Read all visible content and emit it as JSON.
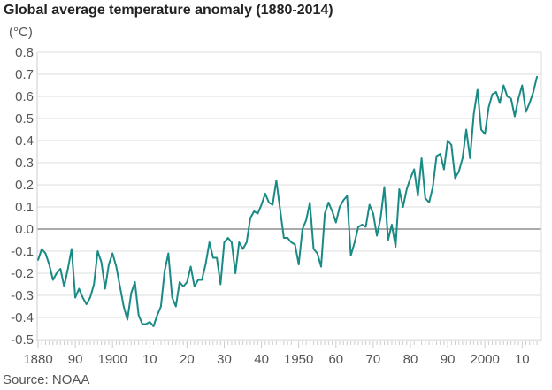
{
  "chart_data": {
    "type": "line",
    "title": "Global average temperature anomaly (1880-2014)",
    "ylabel": "(°C)",
    "xlabel": "",
    "source": "Source: NOAA",
    "ylim": [
      -0.5,
      0.8
    ],
    "xlim": [
      1880,
      2014
    ],
    "grid": true,
    "line_color": "#1a8a85",
    "y_ticks": [
      0.8,
      0.7,
      0.6,
      0.5,
      0.4,
      0.3,
      0.2,
      0.1,
      0.0,
      -0.1,
      -0.2,
      -0.3,
      -0.4,
      -0.5
    ],
    "y_tick_labels": [
      "0.8",
      "0.7",
      "0.6",
      "0.5",
      "0.4",
      "0.3",
      "0.2",
      "0.1",
      "0.0",
      "-0.1",
      "-0.2",
      "-0.3",
      "-0.4",
      "-0.5"
    ],
    "x_ticks": [
      1880,
      1890,
      1900,
      1910,
      1920,
      1930,
      1940,
      1950,
      1960,
      1970,
      1980,
      1990,
      2000,
      2010
    ],
    "x_tick_labels": [
      "1880",
      "90",
      "1900",
      "10",
      "20",
      "30",
      "40",
      "1950",
      "60",
      "70",
      "80",
      "90",
      "2000",
      "10"
    ],
    "x_start": 1880,
    "values": [
      -0.14,
      -0.09,
      -0.11,
      -0.16,
      -0.23,
      -0.2,
      -0.18,
      -0.26,
      -0.18,
      -0.09,
      -0.31,
      -0.27,
      -0.31,
      -0.34,
      -0.31,
      -0.25,
      -0.1,
      -0.15,
      -0.27,
      -0.16,
      -0.11,
      -0.17,
      -0.26,
      -0.35,
      -0.41,
      -0.29,
      -0.24,
      -0.39,
      -0.43,
      -0.43,
      -0.42,
      -0.44,
      -0.39,
      -0.35,
      -0.19,
      -0.11,
      -0.31,
      -0.35,
      -0.24,
      -0.26,
      -0.24,
      -0.17,
      -0.26,
      -0.23,
      -0.23,
      -0.16,
      -0.06,
      -0.13,
      -0.13,
      -0.25,
      -0.06,
      -0.04,
      -0.06,
      -0.2,
      -0.06,
      -0.09,
      -0.06,
      0.05,
      0.08,
      0.07,
      0.11,
      0.16,
      0.12,
      0.11,
      0.22,
      0.09,
      -0.04,
      -0.04,
      -0.06,
      -0.07,
      -0.16,
      0.0,
      0.04,
      0.12,
      -0.09,
      -0.11,
      -0.17,
      0.07,
      0.12,
      0.08,
      0.03,
      0.1,
      0.13,
      0.15,
      -0.12,
      -0.06,
      0.01,
      0.02,
      0.01,
      0.11,
      0.07,
      -0.03,
      0.05,
      0.19,
      -0.05,
      0.02,
      -0.08,
      0.18,
      0.1,
      0.18,
      0.23,
      0.27,
      0.15,
      0.32,
      0.14,
      0.12,
      0.19,
      0.33,
      0.34,
      0.27,
      0.4,
      0.38,
      0.23,
      0.26,
      0.32,
      0.45,
      0.32,
      0.52,
      0.63,
      0.45,
      0.43,
      0.55,
      0.61,
      0.62,
      0.57,
      0.65,
      0.6,
      0.59,
      0.51,
      0.59,
      0.65,
      0.53,
      0.57,
      0.62,
      0.69
    ]
  }
}
